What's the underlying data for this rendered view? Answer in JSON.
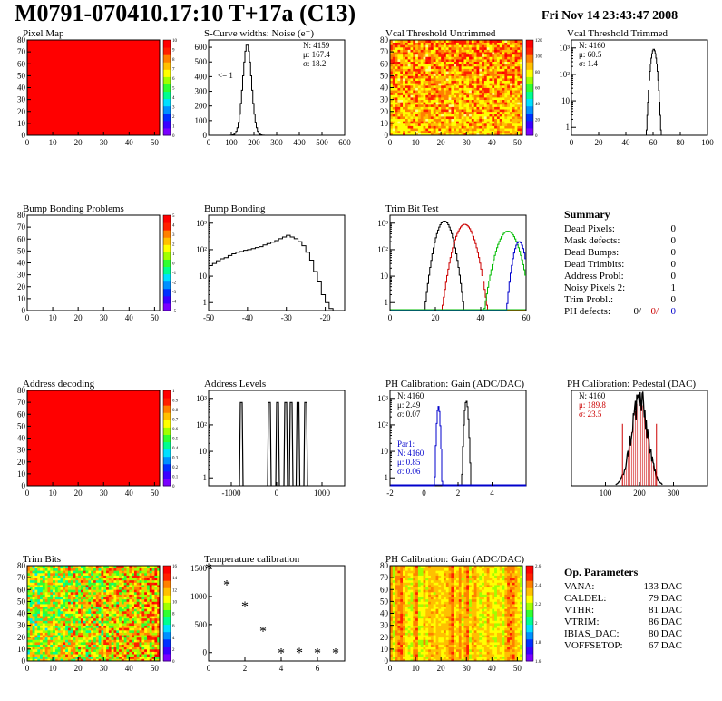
{
  "header": {
    "title": "M0791-070410.17:10 T+17a (C13)",
    "date": "Fri Nov 14 23:43:47 2008"
  },
  "chart_data": [
    {
      "id": "pixel_map",
      "type": "heatmap",
      "title": "Pixel Map",
      "xlim": [
        0,
        52
      ],
      "ylim": [
        0,
        80
      ],
      "xticks": [
        "0",
        "10",
        "20",
        "30",
        "40",
        "50"
      ],
      "yticks": [
        "0",
        "10",
        "20",
        "30",
        "40",
        "50",
        "60",
        "70",
        "80"
      ],
      "fill": "uniform",
      "value": 10,
      "zlim": [
        0,
        10
      ],
      "palette_ticks": [
        "0",
        "1",
        "2",
        "3",
        "4",
        "5",
        "6",
        "7",
        "8",
        "9",
        "10"
      ]
    },
    {
      "id": "scurve",
      "type": "line",
      "title": "S-Curve widths: Noise (e⁻)",
      "xlim": [
        0,
        600
      ],
      "ylim": [
        0,
        650
      ],
      "xticks": [
        "0",
        "100",
        "200",
        "300",
        "400",
        "500",
        "600"
      ],
      "yticks": [
        "0",
        "100",
        "200",
        "300",
        "400",
        "500",
        "600"
      ],
      "annotation": "<= 1",
      "stats": {
        "N": "N: 4159",
        "mu": "μ: 167.4",
        "sigma": "σ: 18.2"
      },
      "peak": {
        "center": 170,
        "width": 19,
        "height": 620
      }
    },
    {
      "id": "vcal_untrimmed",
      "type": "heatmap",
      "title": "Vcal Threshold Untrimmed",
      "xlim": [
        0,
        52
      ],
      "ylim": [
        0,
        80
      ],
      "xticks": [
        "0",
        "10",
        "20",
        "30",
        "40",
        "50"
      ],
      "yticks": [
        "0",
        "10",
        "20",
        "30",
        "40",
        "50",
        "60",
        "70",
        "80"
      ],
      "fill": "noisy-red-yellow",
      "zlim": [
        0,
        100
      ],
      "palette_ticks": [
        "0",
        "20",
        "40",
        "60",
        "80",
        "100",
        "120"
      ]
    },
    {
      "id": "vcal_trimmed",
      "type": "line",
      "title": "Vcal Threshold Trimmed",
      "log_y": true,
      "xlim": [
        0,
        100
      ],
      "ylim": [
        0.5,
        2000
      ],
      "xticks": [
        "0",
        "20",
        "40",
        "60",
        "80",
        "100"
      ],
      "yticks": [
        "1",
        "10",
        "10²",
        "10³"
      ],
      "stats": {
        "N": "N: 4160",
        "mu": "μ: 60.5",
        "sigma": "σ:  1.4"
      },
      "peak": {
        "center": 60.5,
        "width": 1.4,
        "height": 900
      }
    },
    {
      "id": "bump_problems",
      "type": "heatmap",
      "title": "Bump Bonding Problems",
      "xlim": [
        0,
        52
      ],
      "ylim": [
        0,
        80
      ],
      "xticks": [
        "0",
        "10",
        "20",
        "30",
        "40",
        "50"
      ],
      "yticks": [
        "0",
        "10",
        "20",
        "30",
        "40",
        "50",
        "60",
        "70",
        "80"
      ],
      "fill": "empty",
      "zlim": [
        -5,
        5
      ],
      "palette_ticks": [
        "-5",
        "-4",
        "-3",
        "-2",
        "-1",
        "0",
        "1",
        "2",
        "3",
        "4",
        "5"
      ]
    },
    {
      "id": "bump_bonding",
      "type": "line",
      "title": "Bump Bonding",
      "log_y": true,
      "xlim": [
        -50,
        -15
      ],
      "ylim": [
        0.5,
        2000
      ],
      "xticks": [
        "-50",
        "-40",
        "-30",
        "-20"
      ],
      "yticks": [
        "1",
        "10",
        "10²",
        "10³"
      ],
      "x": [
        -50,
        -49,
        -48,
        -47,
        -46,
        -45,
        -44,
        -43,
        -42,
        -41,
        -40,
        -39,
        -38,
        -37,
        -36,
        -35,
        -34,
        -33,
        -32,
        -31,
        -30,
        -29,
        -28,
        -27,
        -26,
        -25,
        -24,
        -23,
        -22,
        -21,
        -20,
        -19
      ],
      "y": [
        25,
        30,
        38,
        45,
        50,
        60,
        70,
        80,
        85,
        95,
        100,
        110,
        120,
        130,
        150,
        170,
        190,
        220,
        260,
        300,
        350,
        300,
        260,
        200,
        140,
        80,
        40,
        15,
        6,
        2,
        1,
        0.6
      ]
    },
    {
      "id": "trim_bits",
      "type": "line",
      "title": "Trim Bit Test",
      "log_y": true,
      "xlim": [
        0,
        60
      ],
      "ylim": [
        0.5,
        2000
      ],
      "xticks": [
        "0",
        "20",
        "40",
        "60"
      ],
      "yticks": [
        "1",
        "10",
        "10²",
        "10³"
      ],
      "series": [
        {
          "color": "#000000",
          "center": 24,
          "sigma": 2.2,
          "height": 1200
        },
        {
          "color": "#cc0000",
          "center": 33,
          "sigma": 2.6,
          "height": 900
        },
        {
          "color": "#00bb00",
          "center": 52,
          "sigma": 2.8,
          "height": 500
        },
        {
          "color": "#0000cc",
          "center": 57,
          "sigma": 1.6,
          "height": 200
        }
      ]
    },
    {
      "id": "address_decoding",
      "type": "heatmap",
      "title": "Address decoding",
      "xlim": [
        0,
        52
      ],
      "ylim": [
        0,
        80
      ],
      "xticks": [
        "0",
        "10",
        "20",
        "30",
        "40",
        "50"
      ],
      "yticks": [
        "0",
        "10",
        "20",
        "30",
        "40",
        "50",
        "60",
        "70",
        "80"
      ],
      "fill": "uniform",
      "value": 1,
      "zlim": [
        0,
        1
      ],
      "palette_ticks": [
        "0",
        "0.1",
        "0.2",
        "0.3",
        "0.4",
        "0.5",
        "0.6",
        "0.7",
        "0.8",
        "0.9",
        "1"
      ]
    },
    {
      "id": "address_levels",
      "type": "line",
      "title": "Address Levels",
      "log_y": true,
      "xlim": [
        -1500,
        1500
      ],
      "ylim": [
        0.5,
        2000
      ],
      "xticks": [
        "-1000",
        "0",
        "1000"
      ],
      "yticks": [
        "1",
        "10",
        "10²",
        "10³"
      ],
      "peaks": [
        -780,
        -160,
        20,
        200,
        320,
        470,
        640
      ]
    },
    {
      "id": "ph_gain",
      "type": "line",
      "title": "PH Calibration: Gain (ADC/DAC)",
      "log_y": true,
      "xlim": [
        -2,
        6
      ],
      "ylim": [
        0.5,
        2000
      ],
      "xticks": [
        "-2",
        "0",
        "2",
        "4"
      ],
      "yticks": [
        "1",
        "10",
        "10²",
        "10³"
      ],
      "stats": {
        "N": "N: 4160",
        "mu": "μ: 2.49",
        "sigma": "σ: 0.07"
      },
      "stats2": {
        "label": "Par1:",
        "N": "N: 4160",
        "mu": "μ: 0.85",
        "sigma": "σ: 0.06"
      },
      "series": [
        {
          "color": "#000000",
          "center": 2.49,
          "sigma": 0.07,
          "height": 800
        },
        {
          "color": "#0000cc",
          "center": 0.85,
          "sigma": 0.06,
          "height": 500
        }
      ]
    },
    {
      "id": "ph_pedestal",
      "type": "line",
      "title": "PH Calibration: Pedestal (DAC)",
      "xlim": [
        0,
        400
      ],
      "ylim": [
        0,
        100
      ],
      "xticks": [
        "100",
        "200",
        "300"
      ],
      "stats": {
        "N": "N: 4160",
        "mu": "μ: 189.8",
        "sigma": "σ: 23.5"
      },
      "peak": {
        "center": 200,
        "sigma": 24,
        "height": 90
      }
    },
    {
      "id": "trim_bits_map",
      "type": "heatmap",
      "title": "Trim Bits",
      "xlim": [
        0,
        52
      ],
      "ylim": [
        0,
        80
      ],
      "xticks": [
        "0",
        "10",
        "20",
        "30",
        "40",
        "50"
      ],
      "yticks": [
        "0",
        "10",
        "20",
        "30",
        "40",
        "50",
        "60",
        "70",
        "80"
      ],
      "fill": "noisy-green",
      "zlim": [
        0,
        16
      ],
      "palette_ticks": [
        "0",
        "2",
        "4",
        "6",
        "8",
        "10",
        "12",
        "14",
        "16"
      ]
    },
    {
      "id": "temperature",
      "type": "scatter",
      "title": "Temperature calibration",
      "xlim": [
        0,
        7.5
      ],
      "ylim": [
        -150,
        1550
      ],
      "xticks": [
        "0",
        "2",
        "4",
        "6"
      ],
      "yticks": [
        "0",
        "500",
        "1000",
        "1500"
      ],
      "x": [
        0,
        1,
        2,
        3,
        4,
        5,
        6,
        7
      ],
      "y": [
        1500,
        1200,
        820,
        380,
        -10,
        -5,
        -10,
        -10
      ]
    },
    {
      "id": "ph_gain_map",
      "type": "heatmap",
      "title": "PH Calibration: Gain (ADC/DAC)",
      "xlim": [
        0,
        52
      ],
      "ylim": [
        0,
        80
      ],
      "xticks": [
        "0",
        "10",
        "20",
        "30",
        "40",
        "50"
      ],
      "yticks": [
        "0",
        "10",
        "20",
        "30",
        "40",
        "50",
        "60",
        "70",
        "80"
      ],
      "fill": "column-stripes",
      "zlim": [
        1.6,
        2.6
      ],
      "palette_ticks": [
        "1.6",
        "1.8",
        "2",
        "2.2",
        "2.4",
        "2.6"
      ]
    }
  ],
  "summary": {
    "title": "Summary",
    "rows": [
      {
        "label": "Dead Pixels:",
        "value": "0"
      },
      {
        "label": "Mask defects:",
        "value": "0"
      },
      {
        "label": "Dead Bumps:",
        "value": "0"
      },
      {
        "label": "Dead Trimbits:",
        "value": "0"
      },
      {
        "label": "Address Probl:",
        "value": "0"
      },
      {
        "label": "Noisy Pixels 2:",
        "value": "1"
      },
      {
        "label": "Trim Probl.:",
        "value": "0"
      }
    ],
    "ph_label": "PH defects:",
    "ph_values": [
      {
        "text": "0/",
        "color": "#000000"
      },
      {
        "text": "0/",
        "color": "#cc0000"
      },
      {
        "text": "0",
        "color": "#0000cc"
      }
    ]
  },
  "op_params": {
    "title": "Op. Parameters",
    "rows": [
      {
        "label": "VANA:",
        "value": "133 DAC"
      },
      {
        "label": "CALDEL:",
        "value": "79 DAC"
      },
      {
        "label": "VTHR:",
        "value": "81 DAC"
      },
      {
        "label": "VTRIM:",
        "value": "86 DAC"
      },
      {
        "label": "IBIAS_DAC:",
        "value": "80 DAC"
      },
      {
        "label": "VOFFSETOP:",
        "value": "67 DAC"
      }
    ]
  }
}
